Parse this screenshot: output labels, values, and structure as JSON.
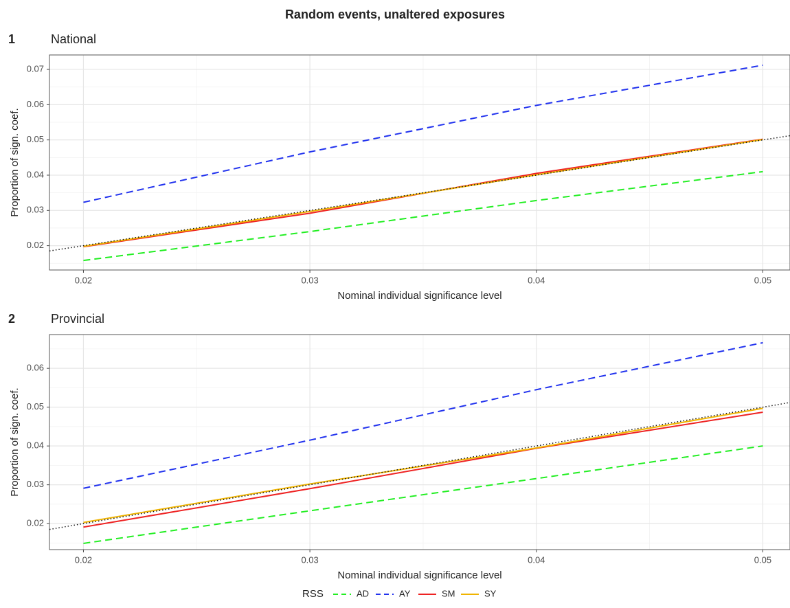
{
  "title": "Random events, unaltered exposures",
  "legend": {
    "title": "RSS",
    "position": "bottom",
    "entries": [
      {
        "name": "AD",
        "color": "#22ee22",
        "dashed": true
      },
      {
        "name": "AY",
        "color": "#2233ee",
        "dashed": true
      },
      {
        "name": "SM",
        "color": "#ee2222",
        "dashed": false
      },
      {
        "name": "SY",
        "color": "#f0b400",
        "dashed": false
      }
    ]
  },
  "chart_data": [
    {
      "type": "line",
      "label": "1",
      "title": "National",
      "x_label": "Nominal individual significance level",
      "y_label": "Proportion of sign. coef.",
      "x": [
        0.02,
        0.03,
        0.04,
        0.05
      ],
      "series": [
        {
          "values": [
            0.0158,
            0.024,
            0.0328,
            0.041
          ]
        },
        {
          "values": [
            0.0323,
            0.0466,
            0.0598,
            0.0712
          ]
        },
        {
          "values": [
            0.0197,
            0.0292,
            0.0405,
            0.0502
          ]
        },
        {
          "values": [
            0.0198,
            0.0297,
            0.0401,
            0.0501
          ]
        }
      ],
      "xlim": [
        0.0185,
        0.0512
      ],
      "ylim": [
        0.0131,
        0.0741
      ],
      "xticks": [
        0.02,
        0.03,
        0.04,
        0.05
      ],
      "yticks": [
        0.02,
        0.03,
        0.04,
        0.05,
        0.06,
        0.07
      ],
      "minor_xticks": [
        0.025,
        0.035,
        0.045
      ],
      "minor_yticks": [
        0.015,
        0.025,
        0.035,
        0.045,
        0.055,
        0.065
      ],
      "grid": true,
      "identity_line": true
    },
    {
      "type": "line",
      "label": "2",
      "title": "Provincial",
      "x_label": "Nominal individual significance level",
      "y_label": "Proportion of sign. coef.",
      "x": [
        0.02,
        0.03,
        0.04,
        0.05
      ],
      "series": [
        {
          "values": [
            0.0149,
            0.0233,
            0.0316,
            0.04
          ]
        },
        {
          "values": [
            0.0291,
            0.0415,
            0.0545,
            0.0666
          ]
        },
        {
          "values": [
            0.0191,
            0.029,
            0.0394,
            0.0487
          ]
        },
        {
          "values": [
            0.0203,
            0.0302,
            0.0395,
            0.0497
          ]
        }
      ],
      "xlim": [
        0.0185,
        0.0512
      ],
      "ylim": [
        0.0133,
        0.0687
      ],
      "xticks": [
        0.02,
        0.03,
        0.04,
        0.05
      ],
      "yticks": [
        0.02,
        0.03,
        0.04,
        0.05,
        0.06
      ],
      "minor_xticks": [
        0.025,
        0.035,
        0.045
      ],
      "minor_yticks": [
        0.015,
        0.025,
        0.035,
        0.045,
        0.055,
        0.065
      ],
      "grid": true,
      "identity_line": true
    }
  ]
}
